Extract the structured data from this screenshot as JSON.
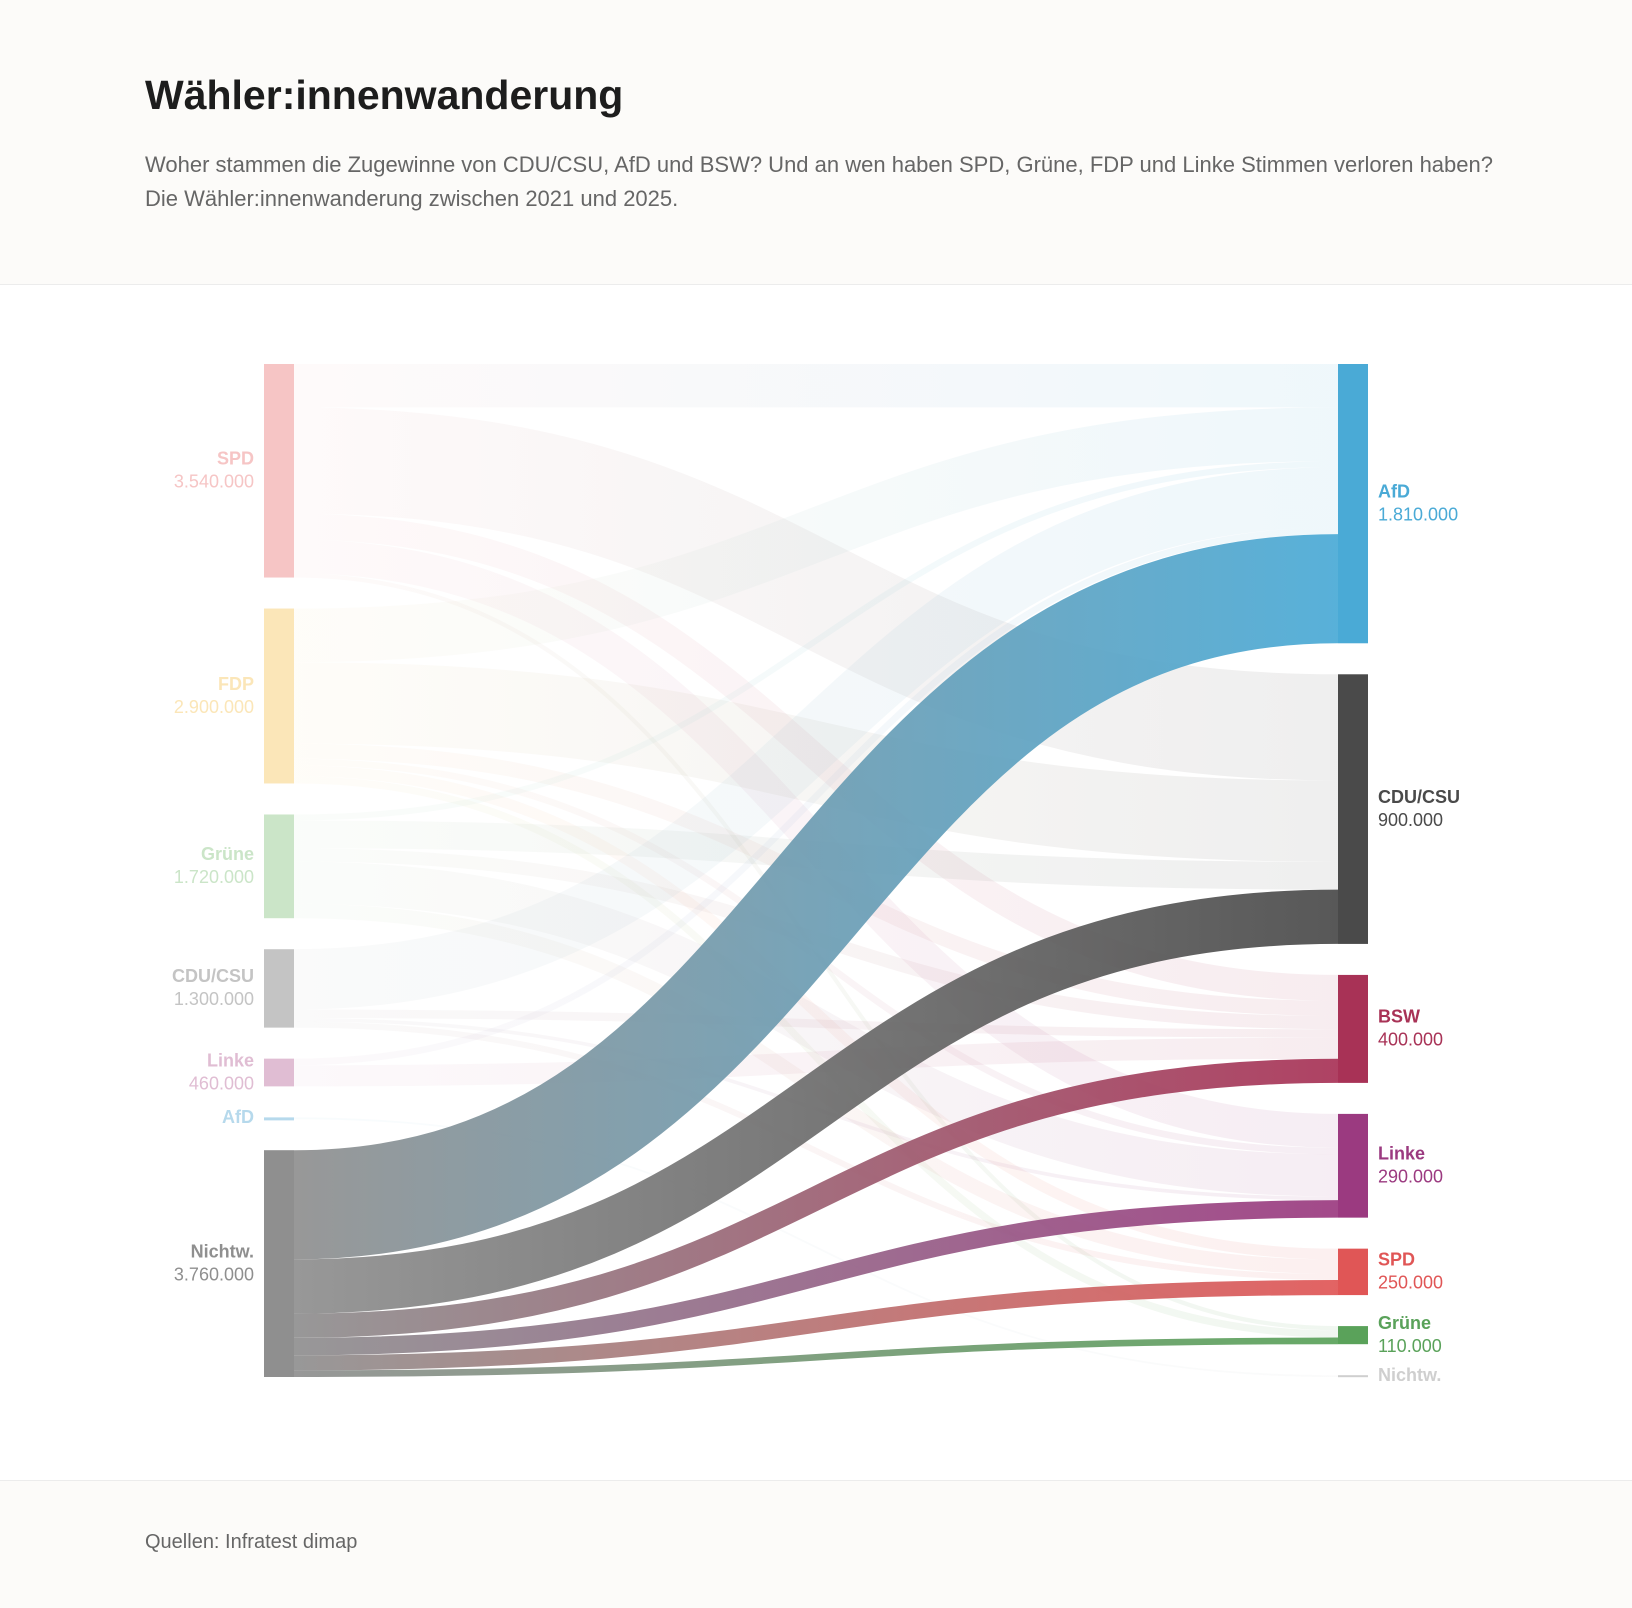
{
  "header": {
    "title": "Wähler:innenwanderung",
    "subtitle": "Woher stammen die Zugewinne von CDU/CSU, AfD und BSW? Und an wen haben SPD, Grüne, FDP und Linke Stimmen verloren haben? Die Wähler:innenwanderung zwischen 2021 und 2025."
  },
  "footer": {
    "source": "Quellen: Infratest dimap"
  },
  "chart_data": {
    "type": "sankey",
    "highlight_source": 6,
    "sources": [
      {
        "name": "SPD",
        "color": "#f6c5c5",
        "value": 3540000,
        "value_label": "3.540.000"
      },
      {
        "name": "FDP",
        "color": "#fbe6b8",
        "value": 2900000,
        "value_label": "2.900.000"
      },
      {
        "name": "Grüne",
        "color": "#cbe5c8",
        "value": 1720000,
        "value_label": "1.720.000"
      },
      {
        "name": "CDU/CSU",
        "color": "#c4c4c4",
        "value": 1300000,
        "value_label": "1.300.000"
      },
      {
        "name": "Linke",
        "color": "#e0bdd3",
        "value": 460000,
        "value_label": "460.000"
      },
      {
        "name": "AfD",
        "color": "#b6d9ec",
        "value": 30000
      },
      {
        "name": "Nichtw.",
        "color": "#8f8f8f",
        "value": 3760000,
        "value_label": "3.760.000"
      }
    ],
    "targets": [
      {
        "name": "AfD",
        "color": "#4aaad6"
      },
      {
        "name": "CDU/CSU",
        "color": "#4a4a4a"
      },
      {
        "name": "BSW",
        "color": "#a83256"
      },
      {
        "name": "Linke",
        "color": "#9b3a80"
      },
      {
        "name": "SPD",
        "color": "#e05656"
      },
      {
        "name": "Grüne",
        "color": "#5aa25a"
      },
      {
        "name": "Nichtw.",
        "color": "#cfcfcf"
      }
    ],
    "links": [
      {
        "source": 0,
        "target": 1,
        "value": 1760000
      },
      {
        "source": 0,
        "target": 0,
        "value": 720000
      },
      {
        "source": 0,
        "target": 2,
        "value": 430000
      },
      {
        "source": 0,
        "target": 3,
        "value": 560000
      },
      {
        "source": 0,
        "target": 5,
        "value": 70000
      },
      {
        "source": 1,
        "target": 1,
        "value": 1350000
      },
      {
        "source": 1,
        "target": 0,
        "value": 890000
      },
      {
        "source": 1,
        "target": 2,
        "value": 250000
      },
      {
        "source": 1,
        "target": 3,
        "value": 110000
      },
      {
        "source": 1,
        "target": 4,
        "value": 180000
      },
      {
        "source": 1,
        "target": 5,
        "value": 120000
      },
      {
        "source": 2,
        "target": 1,
        "value": 460000
      },
      {
        "source": 2,
        "target": 3,
        "value": 700000
      },
      {
        "source": 2,
        "target": 4,
        "value": 240000
      },
      {
        "source": 2,
        "target": 0,
        "value": 100000
      },
      {
        "source": 2,
        "target": 2,
        "value": 220000
      },
      {
        "source": 3,
        "target": 0,
        "value": 1000000
      },
      {
        "source": 3,
        "target": 2,
        "value": 140000
      },
      {
        "source": 3,
        "target": 3,
        "value": 60000
      },
      {
        "source": 3,
        "target": 4,
        "value": 100000
      },
      {
        "source": 4,
        "target": 2,
        "value": 350000
      },
      {
        "source": 4,
        "target": 0,
        "value": 110000
      },
      {
        "source": 5,
        "target": 6,
        "value": 30000
      },
      {
        "source": 6,
        "target": 0,
        "value": 1810000,
        "value_label": "1.810.000"
      },
      {
        "source": 6,
        "target": 1,
        "value": 900000,
        "value_label": "900.000"
      },
      {
        "source": 6,
        "target": 2,
        "value": 400000,
        "value_label": "400.000"
      },
      {
        "source": 6,
        "target": 3,
        "value": 290000,
        "value_label": "290.000"
      },
      {
        "source": 6,
        "target": 4,
        "value": 250000,
        "value_label": "250.000"
      },
      {
        "source": 6,
        "target": 5,
        "value": 110000,
        "value_label": "110.000"
      }
    ]
  }
}
